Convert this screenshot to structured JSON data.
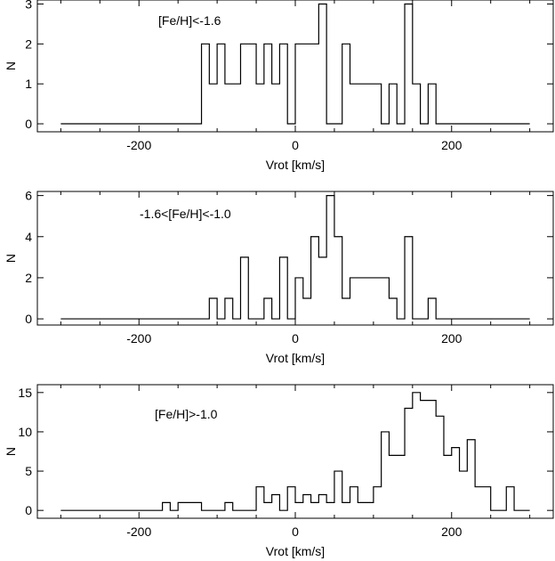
{
  "chart_data": [
    {
      "type": "histogram",
      "annotation": "[Fe/H]<-1.6",
      "xlabel": "Vrot [km/s]",
      "ylabel": "N",
      "xlim": [
        -330,
        330
      ],
      "ylim": [
        -0.2,
        3.1
      ],
      "xticks": [
        "-200",
        "0",
        "200"
      ],
      "yticks": [
        "0",
        "1",
        "2",
        "3"
      ],
      "x": [
        -300,
        -120,
        -110,
        -100,
        -90,
        -80,
        -70,
        -60,
        -50,
        -40,
        -30,
        -20,
        -10,
        0,
        10,
        20,
        30,
        40,
        50,
        60,
        70,
        80,
        90,
        100,
        110,
        120,
        130,
        140,
        150,
        160,
        170,
        180,
        190,
        300
      ],
      "values": [
        0,
        2,
        1,
        2,
        1,
        1,
        2,
        2,
        1,
        2,
        1,
        2,
        0,
        2,
        2,
        2,
        3,
        0,
        0,
        2,
        1,
        1,
        1,
        1,
        0,
        1,
        0,
        3,
        1,
        0,
        1,
        0,
        0
      ]
    },
    {
      "type": "histogram",
      "annotation": "-1.6<[Fe/H]<-1.0",
      "xlabel": "Vrot [km/s]",
      "ylabel": "N",
      "xlim": [
        -330,
        330
      ],
      "ylim": [
        -0.3,
        6.2
      ],
      "xticks": [
        "-200",
        "0",
        "200"
      ],
      "yticks": [
        "0",
        "2",
        "4",
        "6"
      ],
      "x": [
        -300,
        -110,
        -100,
        -90,
        -80,
        -70,
        -60,
        -50,
        -40,
        -30,
        -20,
        -10,
        0,
        10,
        20,
        30,
        40,
        50,
        60,
        70,
        80,
        90,
        100,
        110,
        120,
        130,
        140,
        150,
        160,
        170,
        180,
        190,
        300
      ],
      "values": [
        0,
        1,
        0,
        1,
        0,
        3,
        0,
        0,
        1,
        0,
        3,
        0,
        2,
        1,
        4,
        3,
        6,
        4,
        1,
        2,
        2,
        2,
        2,
        2,
        1,
        0,
        4,
        0,
        0,
        1,
        0,
        0
      ]
    },
    {
      "type": "histogram",
      "annotation": "[Fe/H]>-1.0",
      "xlabel": "Vrot [km/s]",
      "ylabel": "N",
      "xlim": [
        -330,
        330
      ],
      "ylim": [
        -1,
        16
      ],
      "xticks": [
        "-200",
        "0",
        "200"
      ],
      "yticks": [
        "0",
        "5",
        "10",
        "15"
      ],
      "x": [
        -300,
        -170,
        -160,
        -150,
        -130,
        -120,
        -100,
        -90,
        -80,
        -60,
        -50,
        -40,
        -30,
        -20,
        -10,
        0,
        10,
        20,
        30,
        40,
        50,
        60,
        70,
        80,
        100,
        110,
        120,
        140,
        150,
        160,
        180,
        190,
        200,
        210,
        220,
        230,
        240,
        250,
        260,
        270,
        280,
        300
      ],
      "values": [
        0,
        1,
        0,
        1,
        1,
        0,
        0,
        1,
        0,
        0,
        3,
        1,
        2,
        0,
        3,
        1,
        2,
        1,
        2,
        1,
        5,
        1,
        3,
        1,
        3,
        10,
        7,
        13,
        15,
        14,
        12,
        7,
        8,
        5,
        9,
        3,
        3,
        0,
        0,
        3,
        0,
        0
      ]
    }
  ]
}
